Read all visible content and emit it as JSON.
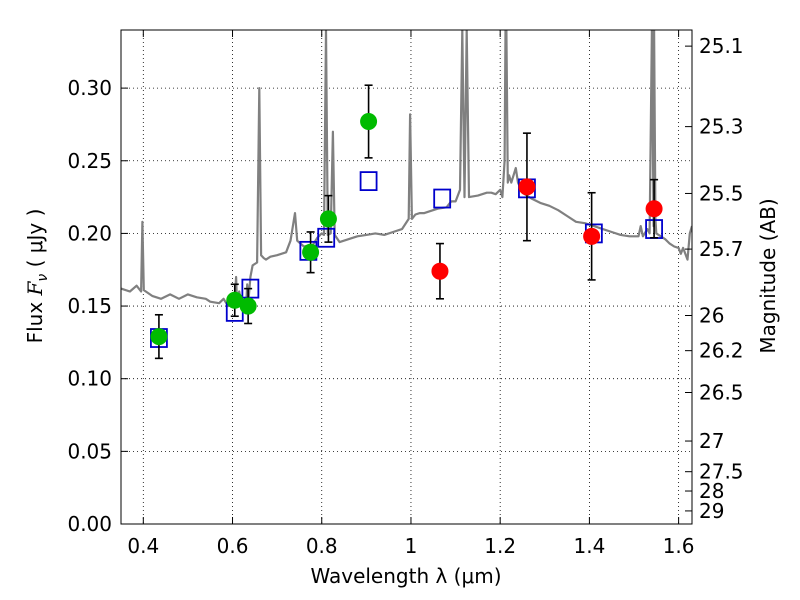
{
  "chart_data": {
    "type": "scatter",
    "title": "",
    "xlabel": "Wavelength  λ (μm)",
    "ylabel": "Flux  F_ν  ( μJy )",
    "ylabel_right": "Magnitude (AB)",
    "xlim": [
      0.35,
      1.63
    ],
    "ylim": [
      0.0,
      0.34
    ],
    "grid": true,
    "x_ticks": [
      0.4,
      0.6,
      0.8,
      1.0,
      1.2,
      1.4,
      1.6
    ],
    "x_tick_labels": [
      "0.4",
      "0.6",
      "0.8",
      "1",
      "1.2",
      "1.4",
      "1.6"
    ],
    "y_ticks": [
      0.0,
      0.05,
      0.1,
      0.15,
      0.2,
      0.25,
      0.3
    ],
    "y_tick_labels": [
      "0.00",
      "0.05",
      "0.10",
      "0.15",
      "0.20",
      "0.25",
      "0.30"
    ],
    "right_ticks": [
      {
        "label": "25.1",
        "flux": 0.3289
      },
      {
        "label": "25.3",
        "flux": 0.2735
      },
      {
        "label": "25.5",
        "flux": 0.2275
      },
      {
        "label": "25.7",
        "flux": 0.1892
      },
      {
        "label": "26",
        "flux": 0.1435
      },
      {
        "label": "26.2",
        "flux": 0.1193
      },
      {
        "label": "26.5",
        "flux": 0.0905
      },
      {
        "label": "27",
        "flux": 0.0571
      },
      {
        "label": "27.5",
        "flux": 0.036
      },
      {
        "label": "28",
        "flux": 0.0227
      },
      {
        "label": "29",
        "flux": 0.009
      }
    ],
    "series": [
      {
        "marker": "circle",
        "color": "#00bb00",
        "points": [
          {
            "x": 0.435,
            "y": 0.129,
            "err": 0.015
          },
          {
            "x": 0.605,
            "y": 0.154,
            "err": 0.011
          },
          {
            "x": 0.635,
            "y": 0.15,
            "err": 0.012
          },
          {
            "x": 0.775,
            "y": 0.187,
            "err": 0.014
          },
          {
            "x": 0.815,
            "y": 0.21,
            "err": 0.016
          },
          {
            "x": 0.905,
            "y": 0.277,
            "err": 0.025
          }
        ]
      },
      {
        "marker": "circle",
        "color": "#ff0000",
        "points": [
          {
            "x": 1.065,
            "y": 0.174,
            "err": 0.019
          },
          {
            "x": 1.26,
            "y": 0.232,
            "err": 0.037
          },
          {
            "x": 1.405,
            "y": 0.198,
            "err": 0.03
          },
          {
            "x": 1.545,
            "y": 0.217,
            "err": 0.02
          }
        ]
      },
      {
        "marker": "open-square",
        "color": "#0000cc",
        "points": [
          {
            "x": 0.435,
            "y": 0.128
          },
          {
            "x": 0.605,
            "y": 0.146
          },
          {
            "x": 0.64,
            "y": 0.162
          },
          {
            "x": 0.77,
            "y": 0.188
          },
          {
            "x": 0.81,
            "y": 0.197
          },
          {
            "x": 0.905,
            "y": 0.236
          },
          {
            "x": 1.07,
            "y": 0.224
          },
          {
            "x": 1.26,
            "y": 0.231
          },
          {
            "x": 1.41,
            "y": 0.2
          },
          {
            "x": 1.545,
            "y": 0.203
          }
        ]
      },
      {
        "type": "line",
        "color": "#808080",
        "points": [
          [
            0.35,
            0.162
          ],
          [
            0.37,
            0.16
          ],
          [
            0.385,
            0.164
          ],
          [
            0.395,
            0.16
          ],
          [
            0.398,
            0.208
          ],
          [
            0.401,
            0.161
          ],
          [
            0.42,
            0.157
          ],
          [
            0.44,
            0.155
          ],
          [
            0.46,
            0.158
          ],
          [
            0.48,
            0.155
          ],
          [
            0.5,
            0.158
          ],
          [
            0.52,
            0.156
          ],
          [
            0.54,
            0.155
          ],
          [
            0.55,
            0.153
          ],
          [
            0.57,
            0.152
          ],
          [
            0.58,
            0.155
          ],
          [
            0.59,
            0.15
          ],
          [
            0.6,
            0.151
          ],
          [
            0.605,
            0.155
          ],
          [
            0.608,
            0.17
          ],
          [
            0.61,
            0.152
          ],
          [
            0.615,
            0.16
          ],
          [
            0.62,
            0.152
          ],
          [
            0.628,
            0.155
          ],
          [
            0.63,
            0.145
          ],
          [
            0.633,
            0.165
          ],
          [
            0.636,
            0.155
          ],
          [
            0.64,
            0.17
          ],
          [
            0.645,
            0.178
          ],
          [
            0.655,
            0.18
          ],
          [
            0.66,
            0.3
          ],
          [
            0.664,
            0.185
          ],
          [
            0.67,
            0.183
          ],
          [
            0.675,
            0.182
          ],
          [
            0.685,
            0.184
          ],
          [
            0.7,
            0.185
          ],
          [
            0.72,
            0.187
          ],
          [
            0.73,
            0.195
          ],
          [
            0.74,
            0.214
          ],
          [
            0.745,
            0.195
          ],
          [
            0.76,
            0.191
          ],
          [
            0.78,
            0.192
          ],
          [
            0.79,
            0.197
          ],
          [
            0.8,
            0.2
          ],
          [
            0.805,
            0.199
          ],
          [
            0.8095,
            0.34
          ],
          [
            0.8135,
            0.199
          ],
          [
            0.82,
            0.2
          ],
          [
            0.825,
            0.27
          ],
          [
            0.829,
            0.199
          ],
          [
            0.84,
            0.194
          ],
          [
            0.86,
            0.196
          ],
          [
            0.88,
            0.198
          ],
          [
            0.9,
            0.199
          ],
          [
            0.92,
            0.2
          ],
          [
            0.94,
            0.199
          ],
          [
            0.96,
            0.201
          ],
          [
            0.98,
            0.203
          ],
          [
            0.995,
            0.21
          ],
          [
            0.998,
            0.282
          ],
          [
            1.002,
            0.21
          ],
          [
            1.01,
            0.213
          ],
          [
            1.02,
            0.214
          ],
          [
            1.03,
            0.214
          ],
          [
            1.04,
            0.215
          ],
          [
            1.06,
            0.217
          ],
          [
            1.08,
            0.218
          ],
          [
            1.09,
            0.222
          ],
          [
            1.095,
            0.222
          ],
          [
            1.1,
            0.222
          ],
          [
            1.11,
            0.23
          ],
          [
            1.115,
            0.34
          ],
          [
            1.12,
            0.225
          ],
          [
            1.125,
            0.34
          ],
          [
            1.13,
            0.225
          ],
          [
            1.15,
            0.226
          ],
          [
            1.17,
            0.228
          ],
          [
            1.18,
            0.228
          ],
          [
            1.19,
            0.227
          ],
          [
            1.2,
            0.23
          ],
          [
            1.205,
            0.225
          ],
          [
            1.21,
            0.25
          ],
          [
            1.212,
            0.34
          ],
          [
            1.214,
            0.34
          ],
          [
            1.217,
            0.235
          ],
          [
            1.22,
            0.24
          ],
          [
            1.225,
            0.235
          ],
          [
            1.235,
            0.245
          ],
          [
            1.24,
            0.235
          ],
          [
            1.25,
            0.228
          ],
          [
            1.27,
            0.224
          ],
          [
            1.29,
            0.221
          ],
          [
            1.31,
            0.219
          ],
          [
            1.33,
            0.216
          ],
          [
            1.35,
            0.212
          ],
          [
            1.37,
            0.208
          ],
          [
            1.39,
            0.207
          ],
          [
            1.41,
            0.205
          ],
          [
            1.43,
            0.203
          ],
          [
            1.45,
            0.201
          ],
          [
            1.47,
            0.199
          ],
          [
            1.49,
            0.198
          ],
          [
            1.51,
            0.198
          ],
          [
            1.515,
            0.205
          ],
          [
            1.52,
            0.198
          ],
          [
            1.53,
            0.203
          ],
          [
            1.535,
            0.2
          ],
          [
            1.54,
            0.34
          ],
          [
            1.544,
            0.205
          ],
          [
            1.545,
            0.34
          ],
          [
            1.548,
            0.21
          ],
          [
            1.55,
            0.2
          ],
          [
            1.56,
            0.198
          ],
          [
            1.57,
            0.196
          ],
          [
            1.58,
            0.193
          ],
          [
            1.59,
            0.191
          ],
          [
            1.6,
            0.19
          ],
          [
            1.605,
            0.186
          ],
          [
            1.61,
            0.19
          ],
          [
            1.615,
            0.186
          ],
          [
            1.62,
            0.182
          ],
          [
            1.625,
            0.2
          ],
          [
            1.63,
            0.205
          ]
        ]
      }
    ]
  }
}
